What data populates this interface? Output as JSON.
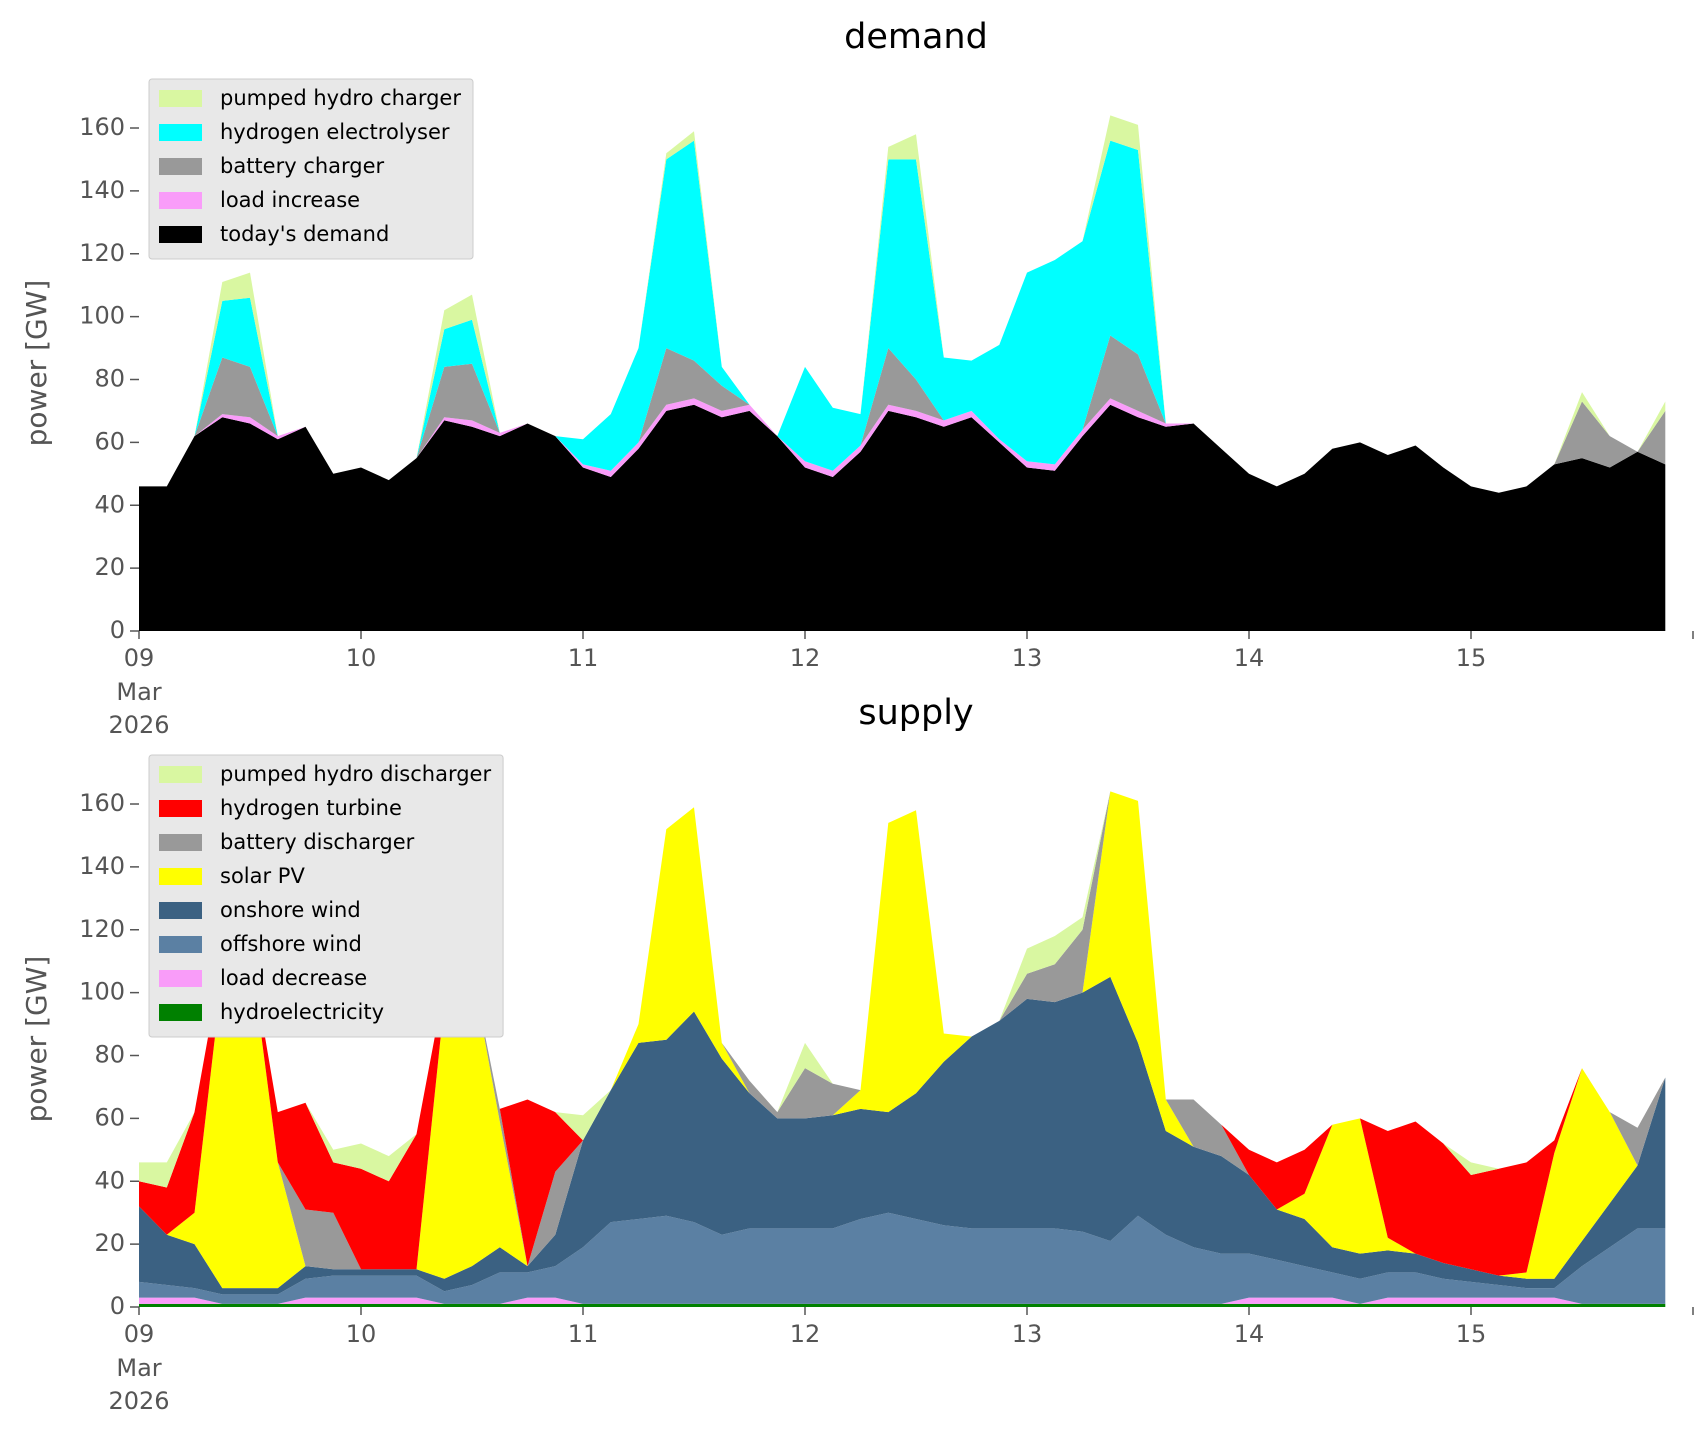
{
  "chart_data": [
    {
      "type": "area",
      "stacked": true,
      "title": "demand",
      "ylabel": "power [GW]",
      "x": [
        9,
        9.125,
        9.25,
        9.375,
        9.5,
        9.625,
        9.75,
        9.875,
        10,
        10.125,
        10.25,
        10.375,
        10.5,
        10.625,
        10.75,
        10.875,
        11,
        11.125,
        11.25,
        11.375,
        11.5,
        11.625,
        11.75,
        11.875,
        12,
        12.125,
        12.25,
        12.375,
        12.5,
        12.625,
        12.75,
        12.875,
        13,
        13.125,
        13.25,
        13.375,
        13.5,
        13.625,
        13.75,
        13.875,
        14,
        14.125,
        14.25,
        14.375,
        14.5,
        14.625,
        14.75,
        14.875,
        15,
        15.125,
        15.25,
        15.375,
        15.5,
        15.625,
        15.75,
        15.875
      ],
      "xlim": [
        9,
        16
      ],
      "xticks": [
        {
          "value": 9,
          "label": "09"
        },
        10,
        11,
        12,
        13,
        14,
        15
      ],
      "xtick_sublabel": [
        "Mar",
        "2026"
      ],
      "ylim": [
        0,
        170.5
      ],
      "yticks": [
        0,
        20,
        40,
        60,
        80,
        100,
        120,
        140,
        160
      ],
      "grid": false,
      "legend": "upper left",
      "series": [
        {
          "name": "today's demand",
          "color": "#000000",
          "values": [
            46,
            46,
            62,
            68,
            66,
            61,
            65,
            50,
            52,
            48,
            55,
            67,
            65,
            62,
            66,
            62,
            52,
            49,
            58,
            70,
            72,
            68,
            70,
            62,
            52,
            49,
            57,
            70,
            68,
            65,
            68,
            60,
            52,
            51,
            62,
            72,
            68,
            65,
            66,
            58,
            50,
            46,
            50,
            58,
            60,
            56,
            59,
            52,
            46,
            44,
            46,
            53,
            55,
            52,
            57,
            53
          ]
        },
        {
          "name": "load increase",
          "color": "#f99cf9",
          "values": [
            0,
            0,
            0,
            1,
            2,
            1,
            0,
            0,
            0,
            0,
            0,
            1,
            2,
            1,
            0,
            0,
            1,
            2,
            2,
            2,
            2,
            2,
            2,
            0,
            2,
            2,
            2,
            2,
            2,
            2,
            2,
            1,
            2,
            2,
            2,
            2,
            2,
            1,
            0,
            0,
            0,
            0,
            0,
            0,
            0,
            0,
            0,
            0,
            0,
            0,
            0,
            0,
            0,
            0,
            0,
            0
          ]
        },
        {
          "name": "battery charger",
          "color": "#999999",
          "values": [
            0,
            0,
            0,
            18,
            16,
            0,
            0,
            0,
            0,
            0,
            0,
            16,
            18,
            0,
            0,
            0,
            0,
            0,
            0,
            18,
            12,
            8,
            0,
            0,
            0,
            0,
            0,
            18,
            10,
            0,
            0,
            0,
            0,
            0,
            0,
            20,
            18,
            0,
            0,
            0,
            0,
            0,
            0,
            0,
            0,
            0,
            0,
            0,
            0,
            0,
            0,
            0,
            18,
            10,
            0,
            17
          ]
        },
        {
          "name": "hydrogen electrolyser",
          "color": "#00ffff",
          "values": [
            0,
            0,
            0,
            18,
            22,
            0,
            0,
            0,
            0,
            0,
            0,
            12,
            14,
            0,
            0,
            0,
            8,
            18,
            30,
            60,
            70,
            6,
            0,
            0,
            30,
            20,
            10,
            60,
            70,
            20,
            16,
            30,
            60,
            65,
            60,
            62,
            65,
            0,
            0,
            0,
            0,
            0,
            0,
            0,
            0,
            0,
            0,
            0,
            0,
            0,
            0,
            0,
            0,
            0,
            0,
            0
          ]
        },
        {
          "name": "pumped hydro charger",
          "color": "#d9f7a1",
          "values": [
            0,
            0,
            0,
            6,
            8,
            0,
            0,
            0,
            0,
            0,
            0,
            6,
            8,
            0,
            0,
            0,
            0,
            0,
            0,
            2,
            3,
            0,
            0,
            0,
            0,
            0,
            0,
            4,
            8,
            0,
            0,
            0,
            0,
            0,
            0,
            8,
            8,
            0,
            0,
            0,
            0,
            0,
            0,
            0,
            0,
            0,
            0,
            0,
            0,
            0,
            0,
            0,
            3,
            0,
            0,
            3
          ]
        }
      ]
    },
    {
      "type": "area",
      "stacked": true,
      "title": "supply",
      "ylabel": "power [GW]",
      "x": [
        9,
        9.125,
        9.25,
        9.375,
        9.5,
        9.625,
        9.75,
        9.875,
        10,
        10.125,
        10.25,
        10.375,
        10.5,
        10.625,
        10.75,
        10.875,
        11,
        11.125,
        11.25,
        11.375,
        11.5,
        11.625,
        11.75,
        11.875,
        12,
        12.125,
        12.25,
        12.375,
        12.5,
        12.625,
        12.75,
        12.875,
        13,
        13.125,
        13.25,
        13.375,
        13.5,
        13.625,
        13.75,
        13.875,
        14,
        14.125,
        14.25,
        14.375,
        14.5,
        14.625,
        14.75,
        14.875,
        15,
        15.125,
        15.25,
        15.375,
        15.5,
        15.625,
        15.75,
        15.875
      ],
      "xlim": [
        9,
        16
      ],
      "xticks": [
        {
          "value": 9,
          "label": "09"
        },
        10,
        11,
        12,
        13,
        14,
        15
      ],
      "xtick_sublabel": [
        "Mar",
        "2026"
      ],
      "ylim": [
        0,
        170.5
      ],
      "yticks": [
        0,
        20,
        40,
        60,
        80,
        100,
        120,
        140,
        160
      ],
      "grid": false,
      "legend": "upper left",
      "series": [
        {
          "name": "hydroelectricity",
          "color": "#008000",
          "values": [
            1,
            1,
            1,
            1,
            1,
            1,
            1,
            1,
            1,
            1,
            1,
            1,
            1,
            1,
            1,
            1,
            1,
            1,
            1,
            1,
            1,
            1,
            1,
            1,
            1,
            1,
            1,
            1,
            1,
            1,
            1,
            1,
            1,
            1,
            1,
            1,
            1,
            1,
            1,
            1,
            1,
            1,
            1,
            1,
            1,
            1,
            1,
            1,
            1,
            1,
            1,
            1,
            1,
            1,
            1,
            1
          ]
        },
        {
          "name": "load decrease",
          "color": "#f99cf9",
          "values": [
            2,
            2,
            2,
            0,
            0,
            0,
            2,
            2,
            2,
            2,
            2,
            0,
            0,
            0,
            2,
            2,
            0,
            0,
            0,
            0,
            0,
            0,
            0,
            0,
            0,
            0,
            0,
            0,
            0,
            0,
            0,
            0,
            0,
            0,
            0,
            0,
            0,
            0,
            0,
            0,
            2,
            2,
            2,
            2,
            0,
            2,
            2,
            2,
            2,
            2,
            2,
            2,
            0,
            0,
            0,
            0
          ]
        },
        {
          "name": "offshore wind",
          "color": "#5b80a3",
          "values": [
            5,
            4,
            3,
            3,
            3,
            3,
            6,
            7,
            7,
            7,
            7,
            4,
            6,
            10,
            8,
            10,
            18,
            26,
            27,
            28,
            26,
            22,
            24,
            24,
            24,
            24,
            27,
            29,
            27,
            25,
            24,
            24,
            24,
            24,
            23,
            20,
            28,
            22,
            18,
            16,
            14,
            12,
            10,
            8,
            8,
            8,
            8,
            6,
            5,
            4,
            3,
            3,
            12,
            18,
            24,
            24
          ]
        },
        {
          "name": "onshore wind",
          "color": "#3b6182",
          "values": [
            24,
            16,
            14,
            2,
            2,
            2,
            4,
            2,
            2,
            2,
            2,
            4,
            6,
            8,
            2,
            10,
            34,
            42,
            56,
            56,
            67,
            56,
            43,
            35,
            35,
            36,
            35,
            32,
            40,
            52,
            61,
            66,
            73,
            72,
            76,
            84,
            55,
            33,
            32,
            31,
            25,
            16,
            15,
            8,
            8,
            7,
            6,
            5,
            4,
            3,
            3,
            3,
            8,
            14,
            20,
            48
          ]
        },
        {
          "name": "solar PV",
          "color": "#ffff00",
          "values": [
            0,
            0,
            10,
            100,
            108,
            40,
            0,
            0,
            0,
            0,
            0,
            88,
            94,
            40,
            0,
            0,
            0,
            0,
            6,
            67,
            65,
            5,
            0,
            0,
            0,
            0,
            6,
            92,
            90,
            9,
            0,
            0,
            0,
            0,
            0,
            59,
            77,
            10,
            0,
            0,
            0,
            0,
            8,
            39,
            43,
            4,
            0,
            0,
            0,
            0,
            2,
            40,
            55,
            29,
            0,
            0
          ]
        },
        {
          "name": "battery discharger",
          "color": "#999999",
          "values": [
            0,
            0,
            0,
            0,
            0,
            0,
            18,
            18,
            0,
            0,
            0,
            0,
            0,
            4,
            0,
            20,
            0,
            0,
            0,
            0,
            0,
            0,
            4,
            2,
            16,
            10,
            0,
            0,
            0,
            0,
            0,
            0,
            8,
            12,
            20,
            0,
            0,
            0,
            15,
            10,
            0,
            0,
            0,
            0,
            0,
            0,
            0,
            0,
            0,
            0,
            0,
            0,
            0,
            0,
            12,
            0
          ]
        },
        {
          "name": "hydrogen turbine",
          "color": "#ff0000",
          "values": [
            8,
            15,
            32,
            5,
            0,
            16,
            34,
            16,
            32,
            28,
            43,
            5,
            0,
            0,
            53,
            19,
            0,
            0,
            0,
            0,
            0,
            0,
            0,
            0,
            0,
            0,
            0,
            0,
            0,
            0,
            0,
            0,
            0,
            0,
            0,
            0,
            0,
            0,
            0,
            0,
            8,
            15,
            14,
            0,
            0,
            34,
            42,
            38,
            30,
            34,
            35,
            4,
            0,
            0,
            0,
            0
          ]
        },
        {
          "name": "pumped hydro discharger",
          "color": "#d9f7a1",
          "values": [
            6,
            8,
            0,
            0,
            0,
            0,
            0,
            4,
            8,
            8,
            0,
            0,
            0,
            0,
            0,
            0,
            8,
            0,
            0,
            0,
            0,
            0,
            0,
            0,
            8,
            0,
            0,
            0,
            0,
            0,
            0,
            0,
            8,
            9,
            4,
            0,
            0,
            0,
            0,
            0,
            0,
            0,
            0,
            0,
            0,
            0,
            0,
            0,
            4,
            0,
            0,
            0,
            0,
            0,
            0,
            0
          ]
        }
      ]
    }
  ]
}
